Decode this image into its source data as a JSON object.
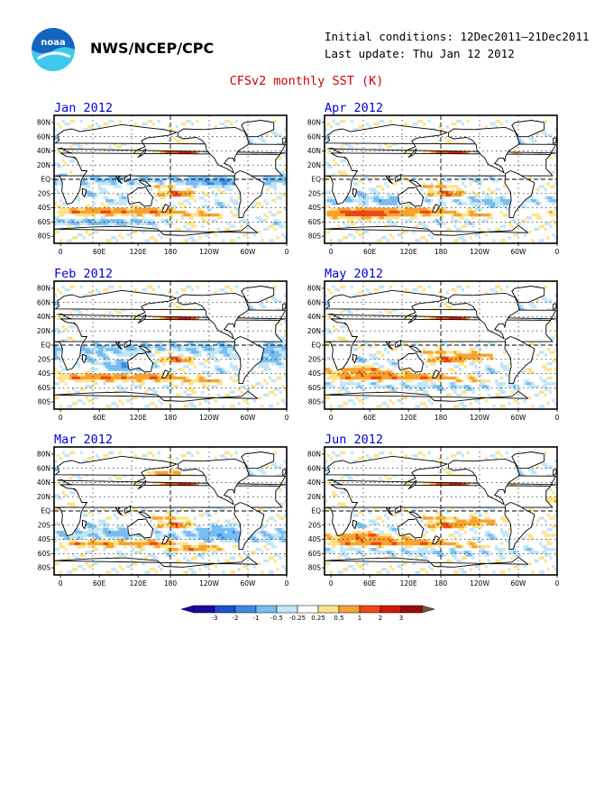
{
  "header": {
    "logo_text": "noaa",
    "org": "NWS/NCEP/CPC",
    "initial_conditions": "Initial conditions: 12Dec2011–21Dec2011",
    "last_update": "Last update: Thu Jan 12 2012",
    "title": "CFSv2 monthly SST (K)"
  },
  "axes": {
    "lat_labels": [
      "80N",
      "60N",
      "40N",
      "20N",
      "EQ",
      "20S",
      "40S",
      "60S",
      "80S"
    ],
    "lon_labels": [
      "0",
      "60E",
      "120E",
      "180",
      "120W",
      "60W",
      "0"
    ]
  },
  "panels": [
    {
      "id": "jan",
      "title": "Jan 2012",
      "column": "left"
    },
    {
      "id": "feb",
      "title": "Feb 2012",
      "column": "left"
    },
    {
      "id": "mar",
      "title": "Mar 2012",
      "column": "left"
    },
    {
      "id": "apr",
      "title": "Apr 2012",
      "column": "right"
    },
    {
      "id": "may",
      "title": "May 2012",
      "column": "right"
    },
    {
      "id": "jun",
      "title": "Jun 2012",
      "column": "right"
    }
  ],
  "colorbar": {
    "labels": [
      "-3",
      "-2",
      "-1",
      "-0.5",
      "-0.25",
      "0.25",
      "0.5",
      "1",
      "2",
      "3"
    ],
    "colors": [
      "#1a0aa0",
      "#1e4fd0",
      "#3a8ae8",
      "#78bdf0",
      "#c2e6f8",
      "#ffffff",
      "#fde38a",
      "#f6a232",
      "#ec4a14",
      "#d01808",
      "#9c0a0a"
    ],
    "under_color": "#1a0aa0",
    "over_color": "#7a5040"
  },
  "colors": {
    "title": "#d00000",
    "panel_title": "#0000dd",
    "logo_blue": "#1565c0",
    "logo_cyan": "#3ec8ec"
  }
}
